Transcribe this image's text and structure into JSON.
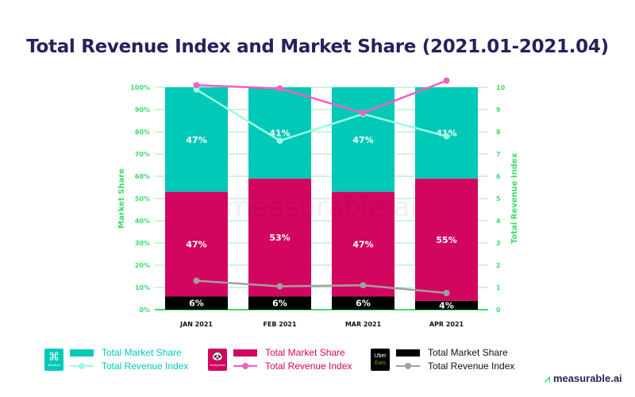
{
  "chart_data": {
    "type": "bar",
    "title": "Total Revenue Index and Market Share (2021.01-2021.04)",
    "ylabel": "Market Share",
    "y2label": "Total Revenue Index",
    "ylim": [
      0,
      100
    ],
    "y2lim": [
      0,
      10
    ],
    "yticks": [
      "0%",
      "10%",
      "20%",
      "30%",
      "40%",
      "50%",
      "60%",
      "70%",
      "80%",
      "90%",
      "100%"
    ],
    "y2ticks": [
      "0",
      "1",
      "2",
      "3",
      "4",
      "5",
      "6",
      "7",
      "8",
      "9",
      "10"
    ],
    "categories": [
      "JAN 2021",
      "FEB 2021",
      "MAR 2021",
      "APR 2021"
    ],
    "stacked_series": [
      {
        "brand": "Uber Eats",
        "name": "Total Market Share",
        "values": [
          6,
          6,
          6,
          4
        ],
        "labels": [
          "6%",
          "6%",
          "6%",
          "4%"
        ],
        "color": "#000000"
      },
      {
        "brand": "foodpanda",
        "name": "Total Market Share",
        "values": [
          47,
          53,
          47,
          55
        ],
        "labels": [
          "47%",
          "53%",
          "47%",
          "55%"
        ],
        "color": "#d3065f"
      },
      {
        "brand": "Deliveroo",
        "name": "Total Market Share",
        "values": [
          47,
          41,
          47,
          41
        ],
        "labels": [
          "47%",
          "41%",
          "47%",
          "41%"
        ],
        "color": "#00c9b7"
      }
    ],
    "line_series": [
      {
        "brand": "Deliveroo",
        "name": "Total Revenue Index",
        "values": [
          9.9,
          7.6,
          8.8,
          7.8
        ],
        "color": "#9cfbe0"
      },
      {
        "brand": "foodpanda",
        "name": "Total Revenue Index",
        "values": [
          10.1,
          9.95,
          8.85,
          10.3
        ],
        "color": "#f25fc4"
      },
      {
        "brand": "Uber Eats",
        "name": "Total Revenue Index",
        "values": [
          1.3,
          1.05,
          1.1,
          0.75
        ],
        "color": "#a0a0a0"
      }
    ],
    "axis_color": "#3ddc6b",
    "grid": true,
    "legend": "bottom"
  },
  "legend": {
    "deliveroo": {
      "logo": "deliveroo",
      "share": "Total Market Share",
      "index": "Total Revenue Index"
    },
    "foodpanda": {
      "logo": "foodpanda",
      "share": "Total Market Share",
      "index": "Total Revenue Index"
    },
    "ubereats": {
      "logo1": "Uber",
      "logo2": "Eats",
      "share": "Total Market Share",
      "index": "Total Revenue Index"
    }
  },
  "watermark": "measurable.ai",
  "brand": "measurable.ai"
}
